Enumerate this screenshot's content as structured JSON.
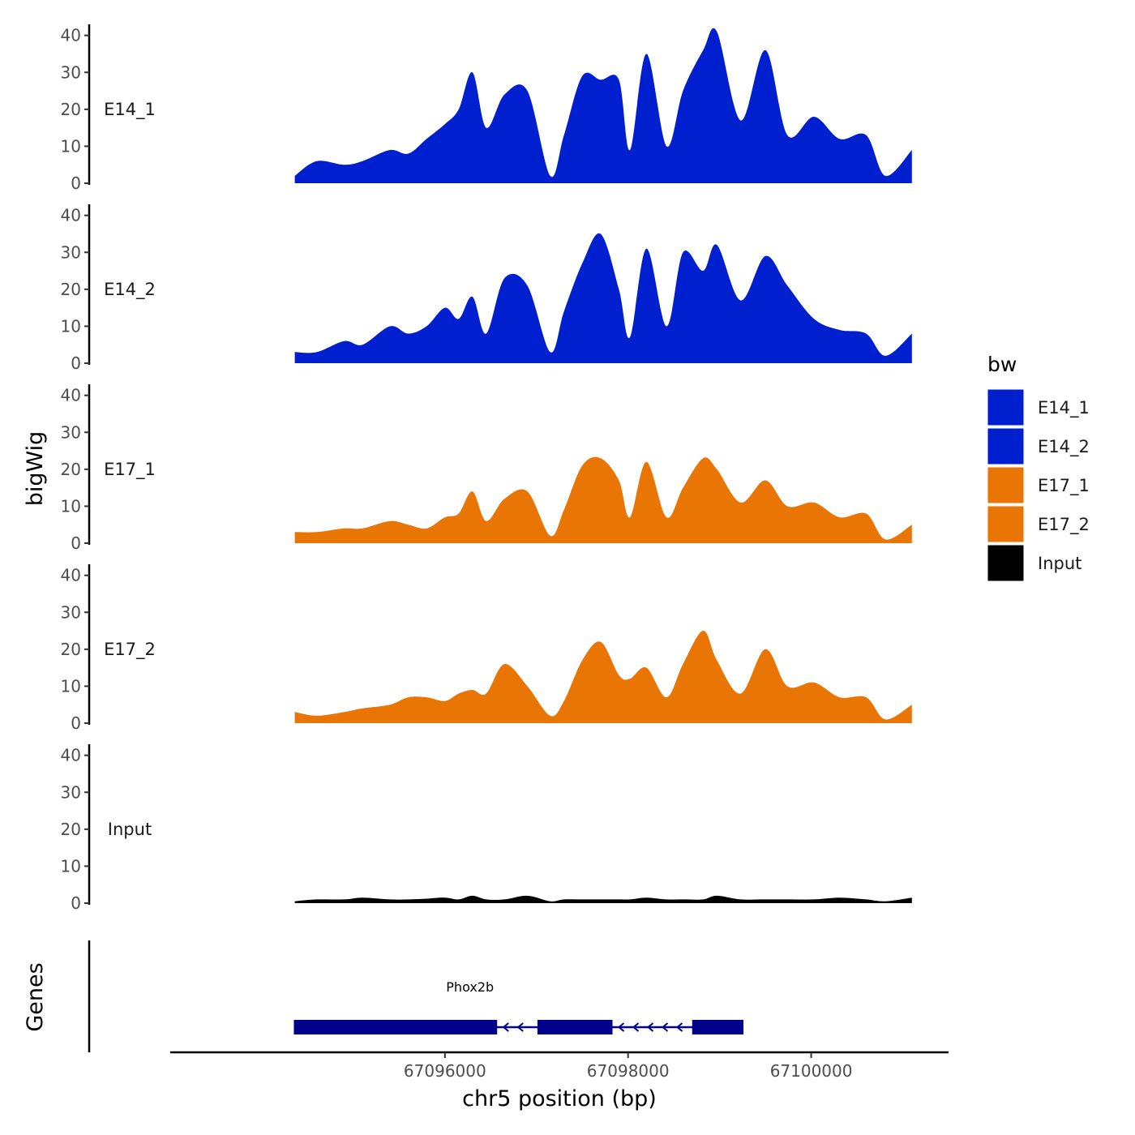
{
  "chart_data": {
    "type": "area",
    "chromosome": "chr5",
    "xlabel": "chr5 position (bp)",
    "ylabel_signal": "bigWig",
    "ylabel_genes": "Genes",
    "xlim": [
      67093000,
      67101500
    ],
    "x_ticks": [
      67096000,
      67098000,
      67100000
    ],
    "x_tick_labels": [
      "67096000",
      "67098000",
      "67100000"
    ],
    "ylim": [
      0,
      43
    ],
    "y_ticks": [
      0,
      10,
      20,
      30,
      40
    ],
    "y_tick_labels": [
      "0",
      "10",
      "20",
      "30",
      "40"
    ],
    "legend": {
      "title": "bw",
      "entries": [
        {
          "label": "E14_1",
          "color": "#0020D0"
        },
        {
          "label": "E14_2",
          "color": "#0020D0"
        },
        {
          "label": "E17_1",
          "color": "#E87504"
        },
        {
          "label": "E17_2",
          "color": "#E87504"
        },
        {
          "label": "Input",
          "color": "#000000"
        }
      ]
    },
    "tracks": [
      {
        "name": "E14_1",
        "color": "#0020D0",
        "x": [
          67094360,
          67094600,
          67094900,
          67095100,
          67095400,
          67095600,
          67095800,
          67096000,
          67096150,
          67096300,
          67096450,
          67096650,
          67096900,
          67097150,
          67097300,
          67097500,
          67097700,
          67097900,
          67098020,
          67098200,
          67098420,
          67098600,
          67098820,
          67098970,
          67099230,
          67099500,
          67099740,
          67100030,
          67100310,
          67100600,
          67100810,
          67101100
        ],
        "values": [
          2,
          6,
          5,
          6,
          9,
          8,
          12,
          16,
          20,
          30,
          15,
          24,
          25,
          2,
          13,
          29,
          28,
          28,
          9,
          35,
          10,
          25,
          36,
          41,
          17,
          36,
          13,
          18,
          12,
          13,
          2,
          9
        ]
      },
      {
        "name": "E14_2",
        "color": "#0020D0",
        "x": [
          67094360,
          67094600,
          67094900,
          67095100,
          67095400,
          67095600,
          67095800,
          67096000,
          67096150,
          67096300,
          67096450,
          67096650,
          67096900,
          67097150,
          67097300,
          67097500,
          67097700,
          67097900,
          67098020,
          67098200,
          67098420,
          67098600,
          67098820,
          67098970,
          67099230,
          67099500,
          67099740,
          67100030,
          67100310,
          67100600,
          67100810,
          67101100
        ],
        "values": [
          3,
          3,
          6,
          5,
          10,
          8,
          10,
          15,
          12,
          18,
          8,
          23,
          21,
          3,
          14,
          27,
          35,
          20,
          7,
          31,
          10,
          30,
          25,
          32,
          17,
          29,
          21,
          12,
          9,
          8,
          2,
          8
        ]
      },
      {
        "name": "E17_1",
        "color": "#E87504",
        "x": [
          67094360,
          67094600,
          67094900,
          67095100,
          67095400,
          67095600,
          67095800,
          67096000,
          67096150,
          67096300,
          67096450,
          67096650,
          67096900,
          67097150,
          67097300,
          67097500,
          67097700,
          67097900,
          67098020,
          67098200,
          67098420,
          67098600,
          67098820,
          67098970,
          67099230,
          67099500,
          67099740,
          67100030,
          67100310,
          67100600,
          67100810,
          67101100
        ],
        "values": [
          3,
          3,
          4,
          4,
          6,
          5,
          4,
          7,
          8,
          14,
          6,
          12,
          14,
          2,
          9,
          21,
          23,
          17,
          7,
          22,
          7,
          15,
          23,
          20,
          11,
          17,
          10,
          11,
          7,
          8,
          1,
          5
        ]
      },
      {
        "name": "E17_2",
        "color": "#E87504",
        "x": [
          67094360,
          67094600,
          67094900,
          67095100,
          67095400,
          67095600,
          67095800,
          67096000,
          67096150,
          67096300,
          67096450,
          67096650,
          67096900,
          67097150,
          67097300,
          67097500,
          67097700,
          67097900,
          67098020,
          67098200,
          67098420,
          67098600,
          67098820,
          67098970,
          67099230,
          67099500,
          67099740,
          67100030,
          67100310,
          67100600,
          67100810,
          67101100
        ],
        "values": [
          3,
          2,
          3,
          4,
          5,
          7,
          7,
          6,
          8,
          9,
          8,
          16,
          10,
          2,
          6,
          17,
          22,
          13,
          12,
          15,
          7,
          16,
          25,
          17,
          8,
          20,
          10,
          11,
          7,
          7,
          1,
          5
        ]
      },
      {
        "name": "Input",
        "color": "#000000",
        "x": [
          67094360,
          67094600,
          67094900,
          67095100,
          67095400,
          67095600,
          67095800,
          67096000,
          67096150,
          67096300,
          67096450,
          67096650,
          67096900,
          67097150,
          67097300,
          67097500,
          67097700,
          67097900,
          67098020,
          67098200,
          67098420,
          67098600,
          67098820,
          67098970,
          67099230,
          67099500,
          67099740,
          67100030,
          67100310,
          67100600,
          67100810,
          67101100
        ],
        "values": [
          0.5,
          1,
          1,
          1.5,
          1,
          1,
          1.2,
          1.5,
          1,
          2,
          1,
          1,
          2,
          0.5,
          1,
          1,
          1,
          1,
          1,
          1.5,
          1,
          1,
          1,
          2,
          1,
          1,
          1,
          1,
          1.5,
          1,
          0.5,
          1.5
        ]
      }
    ],
    "genes": [
      {
        "name": "Phox2b",
        "strand": "-",
        "start": 67094350,
        "end": 67099260,
        "exons": [
          [
            67094350,
            67096570
          ],
          [
            67097010,
            67097830
          ],
          [
            67098700,
            67099260
          ]
        ]
      }
    ]
  }
}
